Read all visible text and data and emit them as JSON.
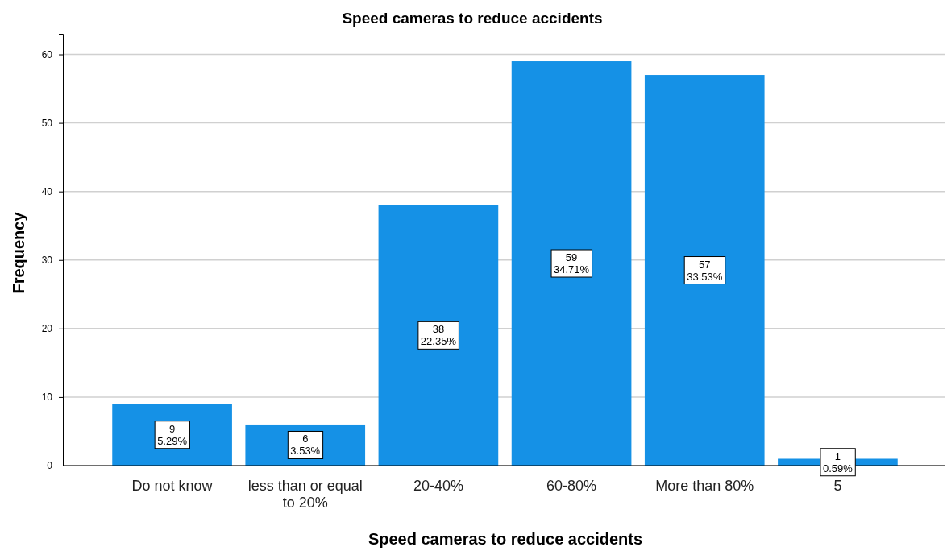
{
  "chart_data": {
    "type": "bar",
    "title": "Speed cameras to reduce accidents",
    "xlabel": "Speed cameras to reduce accidents",
    "ylabel": "Frequency",
    "categories": [
      "Do not know",
      "less than or equal to 20%",
      "20-40%",
      "60-80%",
      "More than 80%",
      "5"
    ],
    "values": [
      9,
      6,
      38,
      59,
      57,
      1
    ],
    "color": "#1591e6",
    "value_labels": [
      "9\n5.29%",
      "6\n3.53%",
      "38\n22.35%",
      "59\n34.71%",
      "57\n33.53%",
      "1\n0.59%"
    ],
    "ylim": [
      0,
      63
    ],
    "yticks": [
      0,
      10,
      20,
      30,
      40,
      50,
      60
    ],
    "grid": "y"
  }
}
